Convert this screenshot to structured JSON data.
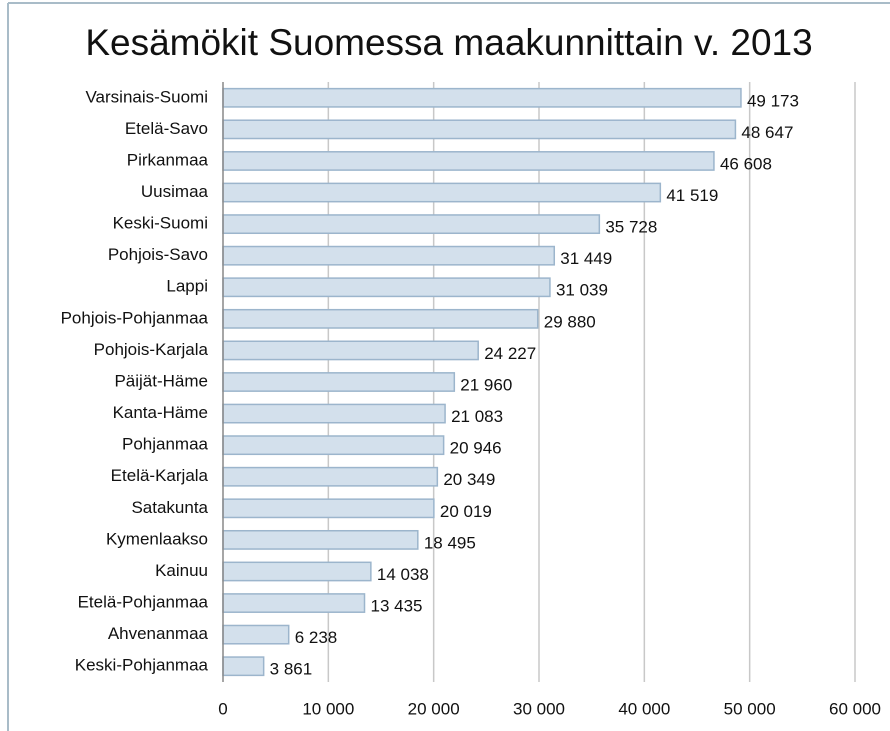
{
  "chart_data": {
    "type": "bar",
    "orientation": "horizontal",
    "title": "Kesämökit Suomessa maakunnittain v. 2013",
    "categories": [
      "Varsinais-Suomi",
      "Etelä-Savo",
      "Pirkanmaa",
      "Uusimaa",
      "Keski-Suomi",
      "Pohjois-Savo",
      "Lappi",
      "Pohjois-Pohjanmaa",
      "Pohjois-Karjala",
      "Päijät-Häme",
      "Kanta-Häme",
      "Pohjanmaa",
      "Etelä-Karjala",
      "Satakunta",
      "Kymenlaakso",
      "Kainuu",
      "Etelä-Pohjanmaa",
      "Ahvenanmaa",
      "Keski-Pohjanmaa"
    ],
    "values": [
      49173,
      48647,
      46608,
      41519,
      35728,
      31449,
      31039,
      29880,
      24227,
      21960,
      21083,
      20946,
      20349,
      20019,
      18495,
      14038,
      13435,
      6238,
      3861
    ],
    "value_labels": [
      "49 173",
      "48 647",
      "46 608",
      "41 519",
      "35 728",
      "31 449",
      "31 039",
      "29 880",
      "24 227",
      "21 960",
      "21 083",
      "20 946",
      "20 349",
      "20 019",
      "18 495",
      "14 038",
      "13 435",
      "6 238",
      "3 861"
    ],
    "color": "#d3e0ec",
    "xlim": [
      0,
      60000
    ],
    "xticks": [
      0,
      {
        "value": 10000,
        "label": "10 000"
      },
      {
        "value": 20000,
        "label": "20 000"
      },
      {
        "value": 30000,
        "label": "30 000"
      },
      {
        "value": 40000,
        "label": "40 000"
      },
      {
        "value": 50000,
        "label": "50 000"
      },
      {
        "value": 60000,
        "label": "60 000"
      }
    ],
    "grid": true
  }
}
